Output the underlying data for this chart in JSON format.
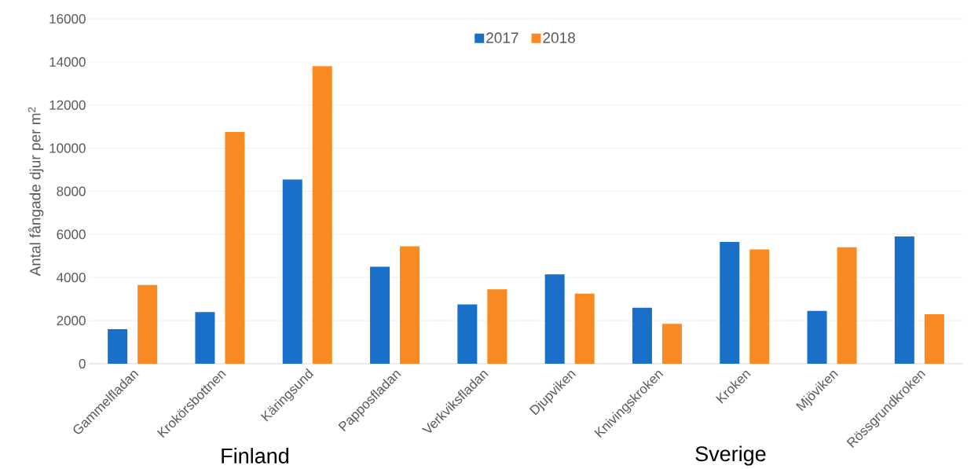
{
  "chart_data": {
    "type": "bar",
    "ylabel": "Antal fångade djur per m$^{2}$",
    "categories": [
      "Gammelfladan",
      "Krokörsbottnen",
      "Käringsund",
      "Papposfladan",
      "Verkviksfladan",
      "Djupviken",
      "Knivingskroken",
      "Kroken",
      "Mjöviken",
      "Rössgrundkroken"
    ],
    "series": [
      {
        "name": "2017",
        "color": "#1a6fc9",
        "values": [
          1600,
          2400,
          8550,
          4500,
          2750,
          4150,
          2600,
          5650,
          2450,
          5900
        ]
      },
      {
        "name": "2018",
        "color": "#f98a21",
        "values": [
          3650,
          10750,
          13800,
          5450,
          3450,
          3250,
          1850,
          5300,
          5400,
          2300
        ]
      }
    ],
    "ylim": [
      0,
      16000
    ],
    "yticks": [
      0,
      2000,
      4000,
      6000,
      8000,
      10000,
      12000,
      14000,
      16000
    ],
    "grid": "y",
    "legend": "top",
    "annotations": [
      "Finland",
      "Sverige"
    ]
  }
}
